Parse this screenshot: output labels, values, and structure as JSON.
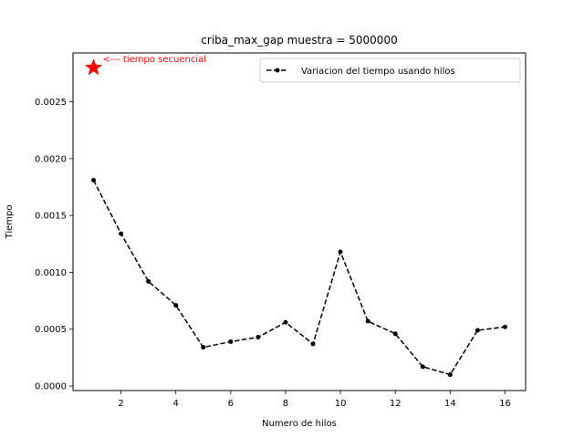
{
  "chart_data": {
    "type": "line",
    "title": "criba_max_gap muestra = 5000000",
    "xlabel": "Numero de hilos",
    "ylabel": "Tiempo",
    "xlim": [
      0.25,
      16.75
    ],
    "ylim": [
      -4e-05,
      0.00293
    ],
    "xticks": [
      2,
      4,
      6,
      8,
      10,
      12,
      14,
      16
    ],
    "xtick_labels": [
      "2",
      "4",
      "6",
      "8",
      "10",
      "12",
      "14",
      "16"
    ],
    "yticks": [
      0.0,
      0.0005,
      0.001,
      0.0015,
      0.002,
      0.0025
    ],
    "ytick_labels": [
      "0.0000",
      "0.0005",
      "0.0010",
      "0.0015",
      "0.0020",
      "0.0025"
    ],
    "grid": false,
    "legend": {
      "position": "top-right"
    },
    "series": [
      {
        "name": "Variacion del tiempo usando hilos",
        "color": "#000000",
        "linestyle": "dashed",
        "marker": "dot",
        "x": [
          1,
          2,
          3,
          4,
          5,
          6,
          7,
          8,
          9,
          10,
          11,
          12,
          13,
          14,
          15,
          16
        ],
        "y": [
          0.00181,
          0.00134,
          0.00092,
          0.00071,
          0.00034,
          0.00039,
          0.00043,
          0.00056,
          0.00037,
          0.00118,
          0.00057,
          0.00046,
          0.00017,
          0.0001,
          0.00049,
          0.00052
        ]
      }
    ],
    "annotations": [
      {
        "text": "<--- tiempo secuencial",
        "x": 1,
        "y": 0.0028,
        "marker": "star",
        "color": "#ff0000"
      }
    ]
  }
}
